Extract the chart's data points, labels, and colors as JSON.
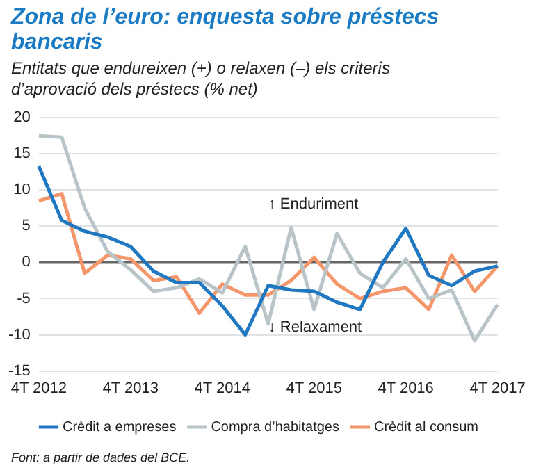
{
  "chart_data": {
    "type": "line",
    "title": "Zona de l’euro: enquesta sobre préstecs bancaris",
    "subtitle": "Entitats que endureixen (+) o relaxen (–) els criteris d’aprovació dels préstecs (% net)",
    "categories": [
      "4T 2012",
      null,
      null,
      null,
      "4T 2013",
      null,
      null,
      null,
      "4T 2014",
      null,
      null,
      null,
      "4T 2015",
      null,
      null,
      null,
      "4T 2016",
      null,
      null,
      null,
      "4T 2017"
    ],
    "series": [
      {
        "name": "Crèdit a empreses",
        "color": "#1f78c1",
        "values": [
          13.3,
          5.8,
          4.3,
          3.5,
          2.2,
          -1.2,
          -2.8,
          -2.8,
          -6,
          -10,
          -3.2,
          -3.8,
          -4,
          -5.5,
          -6.5,
          0,
          4.7,
          -1.8,
          -3.2,
          -1.2,
          -0.5
        ]
      },
      {
        "name": "Compra d’habitatges",
        "color": "#b8c4c8",
        "values": [
          17.5,
          17.3,
          7.5,
          1.5,
          -1,
          -4,
          -3.5,
          -2.3,
          -4.2,
          2.2,
          -8.5,
          4.8,
          -6.5,
          4,
          -1.5,
          -3.5,
          0.5,
          -5,
          -3.8,
          -10.8,
          -5.8
        ]
      },
      {
        "name": "Crèdit al consum",
        "color": "#f4956a",
        "values": [
          8.5,
          9.5,
          -1.5,
          1,
          0.5,
          -2.5,
          -2,
          -7,
          -3,
          -4.5,
          -4.5,
          -2.5,
          0.7,
          -3,
          -5,
          -4,
          -3.5,
          -6.5,
          1,
          -4,
          -0.5
        ]
      }
    ],
    "ylim": [
      -15,
      20
    ],
    "yticks": [
      -15,
      -10,
      -5,
      0,
      5,
      10,
      15,
      20
    ],
    "grid": "y",
    "legend": "bottom",
    "marker": "none",
    "line_style": "solid",
    "annotations": [
      "↑ Enduriment",
      "↓ Relaxament",
      "Font: a partir de dades del BCE."
    ]
  }
}
